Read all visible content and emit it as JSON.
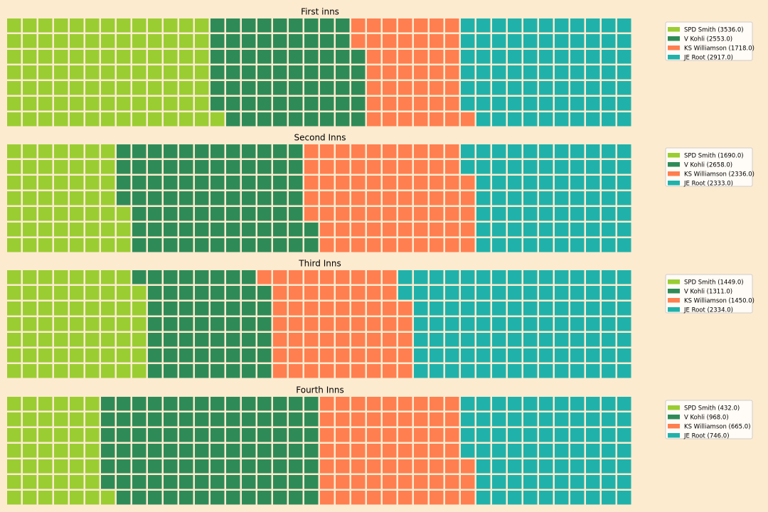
{
  "chart_data": [
    {
      "type": "waffle",
      "title": "First inns",
      "rows": 7,
      "columns": 40,
      "series": [
        {
          "name": "SPD Smith",
          "value": 3536.0,
          "label": "SPD Smith (3536.0)"
        },
        {
          "name": "V Kohli",
          "value": 2553.0,
          "label": "V Kohli (2553.0)"
        },
        {
          "name": "KS Williamson",
          "value": 1718.0,
          "label": "KS Williamson (1718.0)"
        },
        {
          "name": "JE Root",
          "value": 2917.0,
          "label": "JE Root (2917.0)"
        }
      ],
      "legend": "right"
    },
    {
      "type": "waffle",
      "title": "Second Inns",
      "rows": 7,
      "columns": 40,
      "series": [
        {
          "name": "SPD Smith",
          "value": 1690.0,
          "label": "SPD Smith (1690.0)"
        },
        {
          "name": "V Kohli",
          "value": 2658.0,
          "label": "V Kohli (2658.0)"
        },
        {
          "name": "KS Williamson",
          "value": 2336.0,
          "label": "KS Williamson (2336.0)"
        },
        {
          "name": "JE Root",
          "value": 2333.0,
          "label": "JE Root (2333.0)"
        }
      ],
      "legend": "right"
    },
    {
      "type": "waffle",
      "title": "Third Inns",
      "rows": 7,
      "columns": 40,
      "series": [
        {
          "name": "SPD Smith",
          "value": 1449.0,
          "label": "SPD Smith (1449.0)"
        },
        {
          "name": "V Kohli",
          "value": 1311.0,
          "label": "V Kohli (1311.0)"
        },
        {
          "name": "KS Williamson",
          "value": 1450.0,
          "label": "KS Williamson (1450.0)"
        },
        {
          "name": "JE Root",
          "value": 2334.0,
          "label": "JE Root (2334.0)"
        }
      ],
      "legend": "right"
    },
    {
      "type": "waffle",
      "title": "Fourth Inns",
      "rows": 7,
      "columns": 40,
      "series": [
        {
          "name": "SPD Smith",
          "value": 432.0,
          "label": "SPD Smith (432.0)"
        },
        {
          "name": "V Kohli",
          "value": 968.0,
          "label": "V Kohli (968.0)"
        },
        {
          "name": "KS Williamson",
          "value": 665.0,
          "label": "KS Williamson (665.0)"
        },
        {
          "name": "JE Root",
          "value": 746.0,
          "label": "JE Root (746.0)"
        }
      ],
      "legend": "right"
    }
  ],
  "colors": [
    "#9ACD32",
    "#2E8B57",
    "#FF7F50",
    "#20B2AA"
  ],
  "background": "#FDEBD0"
}
